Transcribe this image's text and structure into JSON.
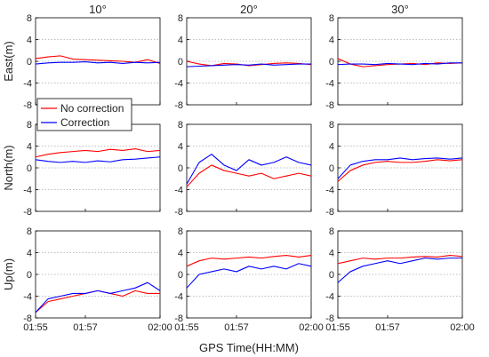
{
  "chart_data": {
    "type": "line",
    "column_titles": [
      "10°",
      "20°",
      "30°"
    ],
    "row_labels": [
      "East(m)",
      "North(m)",
      "Up(m)"
    ],
    "xlabel": "GPS Time(HH:MM)",
    "x_ticks": [
      "01:55",
      "01:57",
      "02:00"
    ],
    "x_range": [
      "01:55",
      "02:00"
    ],
    "y_ticks": [
      "8",
      "4",
      "0",
      "-4",
      "-8"
    ],
    "ylim": [
      -8,
      8
    ],
    "grid": "dotted horizontal",
    "legend": {
      "placement": "East row, 10° panel, bottom-left",
      "entries": [
        "No correction",
        "Correction"
      ]
    },
    "series_colors": {
      "No correction": "#ff0000",
      "Correction": "#0000ff"
    },
    "x_sample_times": [
      "01:55",
      "01:55:30",
      "01:56",
      "01:56:30",
      "01:57",
      "01:57:30",
      "01:58",
      "01:58:30",
      "01:59",
      "01:59:30",
      "02:00"
    ],
    "panels": [
      {
        "row": "East(m)",
        "col": "10°",
        "series": [
          {
            "name": "No correction",
            "values": [
              0.5,
              0.8,
              1.0,
              0.4,
              0.3,
              0.2,
              0.1,
              0.0,
              -0.2,
              0.3,
              -0.4
            ]
          },
          {
            "name": "Correction",
            "values": [
              -0.5,
              -0.3,
              -0.2,
              -0.2,
              -0.1,
              -0.3,
              -0.2,
              -0.4,
              -0.2,
              -0.3,
              -0.2
            ]
          }
        ]
      },
      {
        "row": "East(m)",
        "col": "20°",
        "series": [
          {
            "name": "No correction",
            "values": [
              0.0,
              -0.5,
              -0.8,
              -0.4,
              -0.5,
              -0.8,
              -0.6,
              -0.4,
              -0.3,
              -0.4,
              -0.6
            ]
          },
          {
            "name": "Correction",
            "values": [
              -1.0,
              -0.9,
              -0.8,
              -0.7,
              -0.6,
              -0.7,
              -0.5,
              -0.7,
              -0.6,
              -0.5,
              -0.5
            ]
          }
        ]
      },
      {
        "row": "East(m)",
        "col": "30°",
        "series": [
          {
            "name": "No correction",
            "values": [
              0.5,
              -0.5,
              -1.0,
              -0.8,
              -0.6,
              -0.5,
              -0.4,
              -0.6,
              -0.3,
              -0.4,
              -0.3
            ]
          },
          {
            "name": "Correction",
            "values": [
              -0.6,
              -0.5,
              -0.5,
              -0.6,
              -0.4,
              -0.5,
              -0.6,
              -0.4,
              -0.5,
              -0.3,
              -0.3
            ]
          }
        ]
      },
      {
        "row": "North(m)",
        "col": "10°",
        "series": [
          {
            "name": "No correction",
            "values": [
              2.0,
              2.5,
              2.8,
              3.0,
              3.2,
              3.0,
              3.4,
              3.2,
              3.5,
              3.0,
              3.2
            ]
          },
          {
            "name": "Correction",
            "values": [
              1.5,
              1.2,
              1.0,
              1.2,
              1.0,
              1.3,
              1.1,
              1.5,
              1.6,
              1.8,
              2.0
            ]
          }
        ]
      },
      {
        "row": "North(m)",
        "col": "20°",
        "series": [
          {
            "name": "No correction",
            "values": [
              -3.5,
              -1.0,
              0.5,
              -0.5,
              -1.0,
              -1.5,
              -1.0,
              -2.0,
              -1.5,
              -1.0,
              -1.5
            ]
          },
          {
            "name": "Correction",
            "values": [
              -3.0,
              1.0,
              2.5,
              0.5,
              -0.5,
              1.5,
              0.5,
              1.0,
              2.0,
              1.0,
              0.5
            ]
          }
        ]
      },
      {
        "row": "North(m)",
        "col": "30°",
        "series": [
          {
            "name": "No correction",
            "values": [
              -2.5,
              -0.5,
              0.5,
              1.0,
              1.2,
              1.0,
              1.0,
              1.2,
              1.5,
              1.3,
              1.5
            ]
          },
          {
            "name": "Correction",
            "values": [
              -2.0,
              0.5,
              1.2,
              1.5,
              1.5,
              1.8,
              1.5,
              1.7,
              1.8,
              1.6,
              1.8
            ]
          }
        ]
      },
      {
        "row": "Up(m)",
        "col": "10°",
        "series": [
          {
            "name": "No correction",
            "values": [
              -7.0,
              -5.0,
              -4.5,
              -4.0,
              -3.5,
              -3.0,
              -3.5,
              -4.0,
              -3.0,
              -3.5,
              -3.5
            ]
          },
          {
            "name": "Correction",
            "values": [
              -7.0,
              -4.5,
              -4.0,
              -3.5,
              -3.5,
              -3.0,
              -3.5,
              -3.0,
              -2.5,
              -1.5,
              -3.0
            ]
          }
        ]
      },
      {
        "row": "Up(m)",
        "col": "20°",
        "series": [
          {
            "name": "No correction",
            "values": [
              1.5,
              2.5,
              3.0,
              2.8,
              3.0,
              3.2,
              3.0,
              3.3,
              3.5,
              3.2,
              3.5
            ]
          },
          {
            "name": "Correction",
            "values": [
              -2.5,
              0.0,
              0.5,
              1.0,
              0.5,
              1.5,
              1.0,
              1.5,
              1.0,
              2.0,
              1.5
            ]
          }
        ]
      },
      {
        "row": "Up(m)",
        "col": "30°",
        "series": [
          {
            "name": "No correction",
            "values": [
              2.0,
              2.5,
              3.0,
              2.8,
              3.0,
              3.0,
              3.2,
              3.3,
              3.2,
              3.5,
              3.3
            ]
          },
          {
            "name": "Correction",
            "values": [
              -1.5,
              0.5,
              1.5,
              2.0,
              2.5,
              2.0,
              2.5,
              3.0,
              2.8,
              3.0,
              3.0
            ]
          }
        ]
      }
    ]
  }
}
